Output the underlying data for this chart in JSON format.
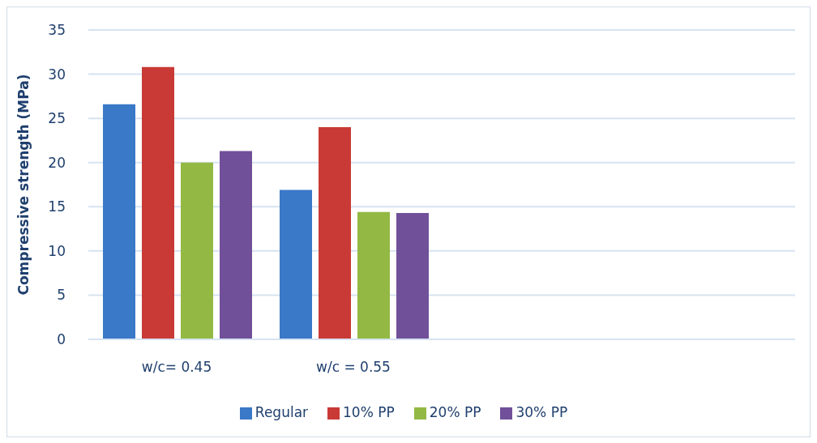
{
  "chart_data": {
    "type": "bar",
    "ylabel": "Compressive strength (MPa)",
    "categories": [
      "w/c= 0.45",
      "w/c = 0.55",
      null,
      null
    ],
    "series": [
      {
        "name": "Regular",
        "color": "#3a78c8",
        "values": [
          26.6,
          16.9,
          null,
          null
        ]
      },
      {
        "name": "10% PP",
        "color": "#c93a36",
        "values": [
          30.8,
          24.0,
          null,
          null
        ]
      },
      {
        "name": "20% PP",
        "color": "#93b944",
        "values": [
          20.0,
          14.4,
          null,
          null
        ]
      },
      {
        "name": "30% PP",
        "color": "#71509a",
        "values": [
          21.3,
          14.3,
          null,
          null
        ]
      }
    ],
    "ylim": [
      0,
      35
    ],
    "yticks": [
      0,
      5,
      10,
      15,
      20,
      25,
      30,
      35
    ],
    "grid": "y",
    "legend": "bottom"
  }
}
